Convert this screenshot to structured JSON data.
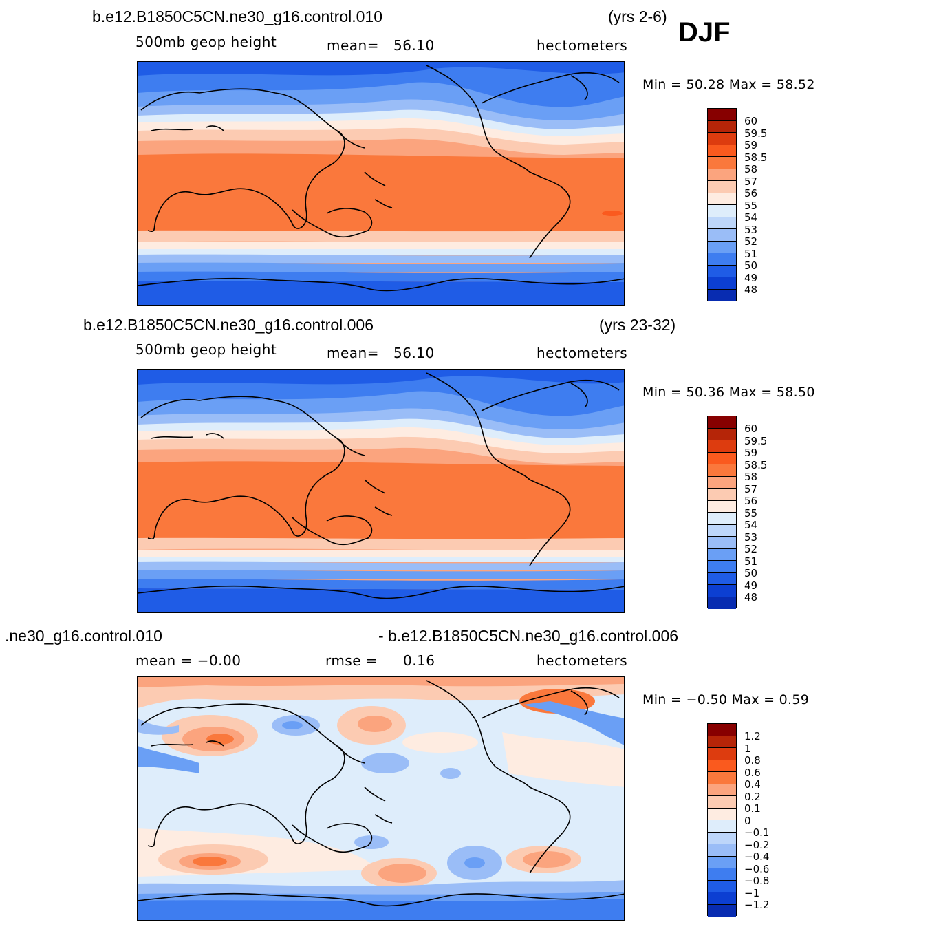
{
  "season": "DJF",
  "panels": [
    {
      "case": "b.e12.B1850C5CN.ne30_g16.control.010",
      "years": "(yrs 2-6)",
      "variable": "500mb  geop  height",
      "stat_label": "mean=",
      "stat_value": "56.10",
      "units": "hectometers",
      "minmax": "Min =    50.28  Max =    58.52",
      "colorbar_labels": [
        "60",
        "59.5",
        "59",
        "58.5",
        "58",
        "57",
        "56",
        "55",
        "54",
        "53",
        "52",
        "51",
        "50",
        "49",
        "48"
      ],
      "colors": [
        "#870000",
        "#b52508",
        "#dd3c0f",
        "#fa5a1e",
        "#fa783c",
        "#fba47e",
        "#fccbb2",
        "#feece1",
        "#deedfb",
        "#bdd6fa",
        "#9abdf7",
        "#6a9ff5",
        "#3e7df0",
        "#1f5ce6",
        "#0c3fd2",
        "#082cb1"
      ]
    },
    {
      "case": "b.e12.B1850C5CN.ne30_g16.control.006",
      "years": "(yrs 23-32)",
      "variable": "500mb  geop  height",
      "stat_label": "mean=",
      "stat_value": "56.10",
      "units": "hectometers",
      "minmax": "Min =    50.36  Max =    58.50",
      "colorbar_labels": [
        "60",
        "59.5",
        "59",
        "58.5",
        "58",
        "57",
        "56",
        "55",
        "54",
        "53",
        "52",
        "51",
        "50",
        "49",
        "48"
      ],
      "colors": [
        "#870000",
        "#b52508",
        "#dd3c0f",
        "#fa5a1e",
        "#fa783c",
        "#fba47e",
        "#fccbb2",
        "#feece1",
        "#deedfb",
        "#bdd6fa",
        "#9abdf7",
        "#6a9ff5",
        "#3e7df0",
        "#1f5ce6",
        "#0c3fd2",
        "#082cb1"
      ]
    },
    {
      "case": ".ne30_g16.control.010",
      "years": "- b.e12.B1850C5CN.ne30_g16.control.006",
      "variable": "mean  =   −0.00",
      "stat_label": "rmse  =",
      "stat_value": "0.16",
      "units": "hectometers",
      "minmax": "Min =   −0.50  Max =     0.59",
      "colorbar_labels": [
        "1.2",
        "1",
        "0.8",
        "0.6",
        "0.4",
        "0.2",
        "0.1",
        "0",
        "−0.1",
        "−0.2",
        "−0.4",
        "−0.6",
        "−0.8",
        "−1",
        "−1.2"
      ],
      "colors": [
        "#870000",
        "#b52508",
        "#dd3c0f",
        "#fa5a1e",
        "#fa783c",
        "#fba47e",
        "#fccbb2",
        "#feece1",
        "#deedfb",
        "#bdd6fa",
        "#9abdf7",
        "#6a9ff5",
        "#3e7df0",
        "#1f5ce6",
        "#0c3fd2",
        "#082cb1"
      ]
    }
  ]
}
